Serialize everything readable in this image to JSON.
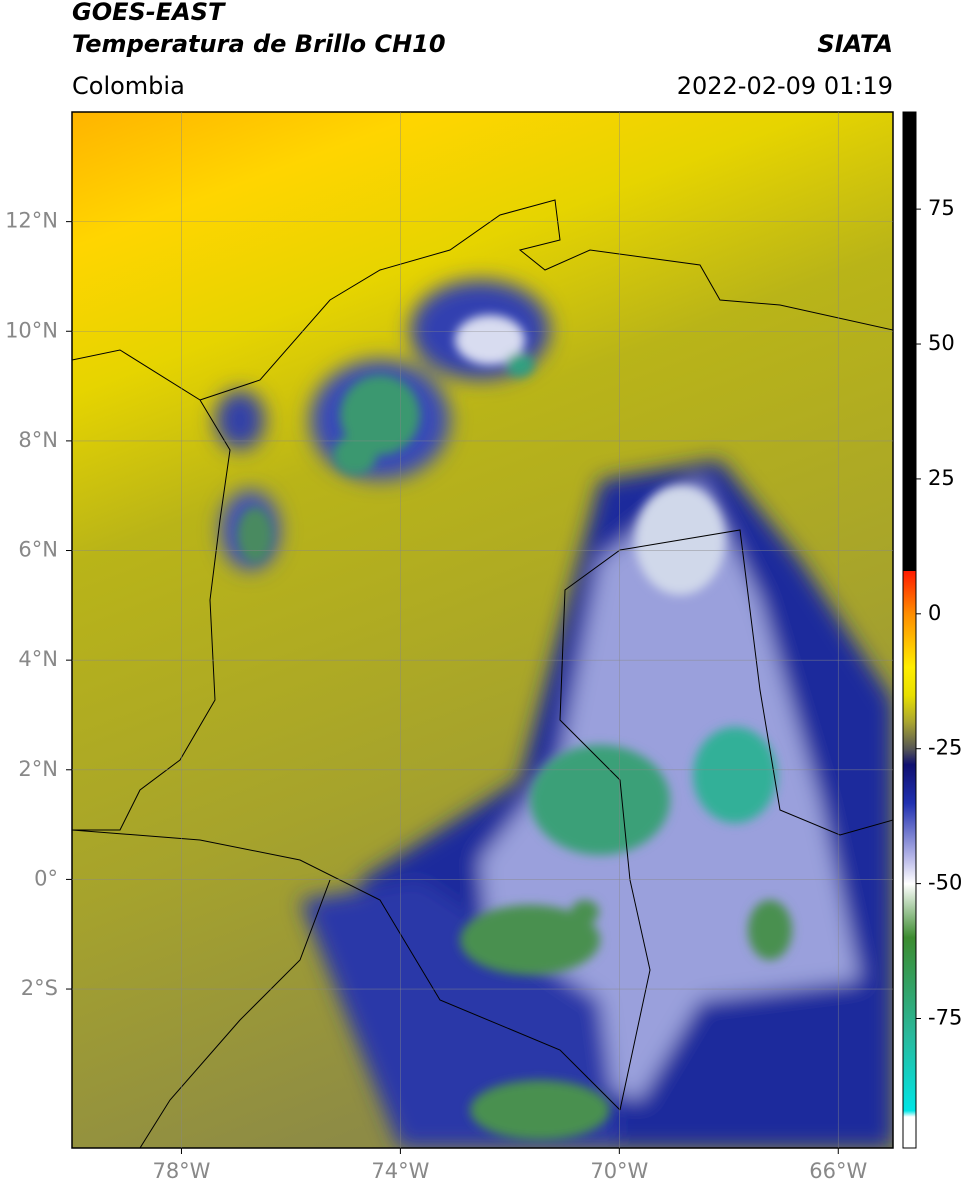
{
  "header": {
    "title": "GOES-EAST",
    "subtitle": "Temperatura de Brillo CH10",
    "region": "Colombia",
    "source": "SIATA",
    "timestamp": "2022-02-09 01:19"
  },
  "map": {
    "xlim": [
      -80,
      -65
    ],
    "ylim": [
      -4.9,
      14
    ],
    "xticks": [
      {
        "value": -78,
        "label": "78°W"
      },
      {
        "value": -74,
        "label": "74°W"
      },
      {
        "value": -70,
        "label": "70°W"
      },
      {
        "value": -66,
        "label": "66°W"
      }
    ],
    "yticks": [
      {
        "value": 12,
        "label": "12°N"
      },
      {
        "value": 10,
        "label": "10°N"
      },
      {
        "value": 8,
        "label": "8°N"
      },
      {
        "value": 6,
        "label": "6°N"
      },
      {
        "value": 4,
        "label": "4°N"
      },
      {
        "value": 2,
        "label": "2°N"
      },
      {
        "value": 0,
        "label": "0°"
      },
      {
        "value": -2,
        "label": "2°S"
      }
    ]
  },
  "colorbar": {
    "lim": [
      -99,
      93
    ],
    "ticks": [
      75,
      50,
      25,
      0,
      -25,
      -50,
      -75
    ]
  }
}
